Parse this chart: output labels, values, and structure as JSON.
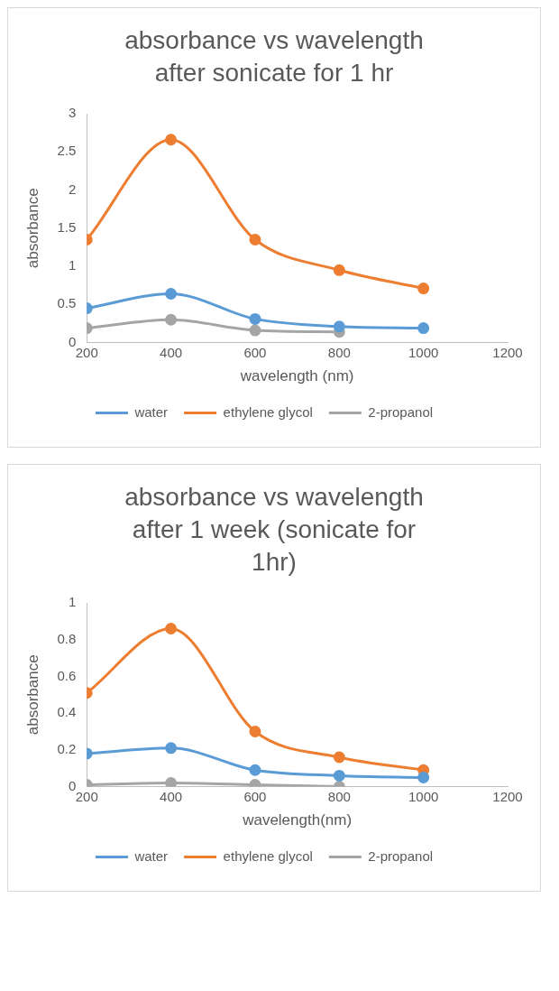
{
  "chart_data": [
    {
      "type": "line",
      "title": "absorbance vs wavelength after sonicate for 1 hr",
      "xlabel": "wavelength (nm)",
      "ylabel": "absorbance",
      "x": [
        200,
        400,
        600,
        800,
        1000
      ],
      "xlim": [
        200,
        1200
      ],
      "xticks": [
        200,
        400,
        600,
        800,
        1000,
        1200
      ],
      "ylim": [
        0,
        3
      ],
      "yticks": [
        0,
        0.5,
        1,
        1.5,
        2,
        2.5,
        3
      ],
      "grid": false,
      "legend": "bottom",
      "marker": "circle",
      "series": [
        {
          "name": "water",
          "color": "#5b9bd5",
          "values": [
            0.45,
            0.64,
            0.31,
            0.21,
            0.19
          ]
        },
        {
          "name": "ethylene glycol",
          "color": "#ed7d31",
          "values": [
            1.35,
            2.66,
            1.35,
            0.95,
            0.71
          ]
        },
        {
          "name": "2-propanol",
          "color": "#a5a5a5",
          "values": [
            0.19,
            0.3,
            0.16,
            0.14,
            null
          ]
        }
      ]
    },
    {
      "type": "line",
      "title": "absorbance vs wavelength after 1 week (sonicate for 1hr)",
      "xlabel": "wavelength(nm)",
      "ylabel": "absorbance",
      "x": [
        200,
        400,
        600,
        800,
        1000
      ],
      "xlim": [
        200,
        1200
      ],
      "xticks": [
        200,
        400,
        600,
        800,
        1000,
        1200
      ],
      "ylim": [
        0,
        1
      ],
      "yticks": [
        0,
        0.2,
        0.4,
        0.6,
        0.8,
        1
      ],
      "grid": false,
      "legend": "bottom",
      "marker": "circle",
      "series": [
        {
          "name": "water",
          "color": "#5b9bd5",
          "values": [
            0.18,
            0.21,
            0.09,
            0.06,
            0.05
          ]
        },
        {
          "name": "ethylene glycol",
          "color": "#ed7d31",
          "values": [
            0.51,
            0.86,
            0.3,
            0.16,
            0.09
          ]
        },
        {
          "name": "2-propanol",
          "color": "#a5a5a5",
          "values": [
            0.01,
            0.02,
            0.01,
            0,
            null
          ]
        }
      ]
    }
  ]
}
